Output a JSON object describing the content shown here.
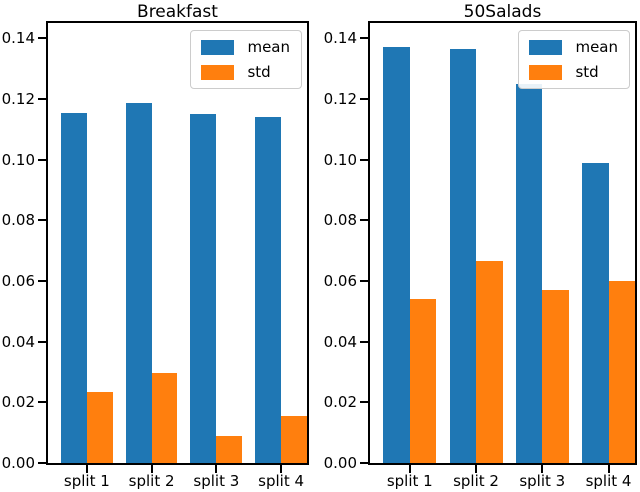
{
  "figure": {
    "background": "#ffffff",
    "text_color": "#000000",
    "series_colors": {
      "mean": "#1f77b4",
      "std": "#ff7f0e"
    },
    "legend_border_color": "#cccccc"
  },
  "chart_data": [
    {
      "type": "bar",
      "title": "Breakfast",
      "categories": [
        "split 1",
        "split 2",
        "split 3",
        "split 4"
      ],
      "series": [
        {
          "name": "mean",
          "color": "#1f77b4",
          "values": [
            0.1155,
            0.1185,
            0.115,
            0.114
          ]
        },
        {
          "name": "std",
          "color": "#ff7f0e",
          "values": [
            0.0235,
            0.0295,
            0.009,
            0.0155
          ]
        }
      ],
      "ylim": [
        0,
        0.145
      ],
      "yticks": [
        "0.00",
        "0.02",
        "0.04",
        "0.06",
        "0.08",
        "0.10",
        "0.12",
        "0.14"
      ],
      "xlabel": "",
      "ylabel": "",
      "grid": false,
      "legend_position": "upper right",
      "bar_width_units": 0.4,
      "x_margin_units": 0.6
    },
    {
      "type": "bar",
      "title": "50Salads",
      "categories": [
        "split 1",
        "split 2",
        "split 3",
        "split 4"
      ],
      "series": [
        {
          "name": "mean",
          "color": "#1f77b4",
          "values": [
            0.1372,
            0.1366,
            0.125,
            0.099
          ]
        },
        {
          "name": "std",
          "color": "#ff7f0e",
          "values": [
            0.054,
            0.0665,
            0.057,
            0.06
          ]
        }
      ],
      "ylim": [
        0,
        0.145
      ],
      "yticks": [
        "0.00",
        "0.02",
        "0.04",
        "0.06",
        "0.08",
        "0.10",
        "0.12",
        "0.14"
      ],
      "xlabel": "",
      "ylabel": "",
      "grid": false,
      "legend_position": "upper right",
      "bar_width_units": 0.4,
      "x_margin_units": 0.6
    }
  ]
}
